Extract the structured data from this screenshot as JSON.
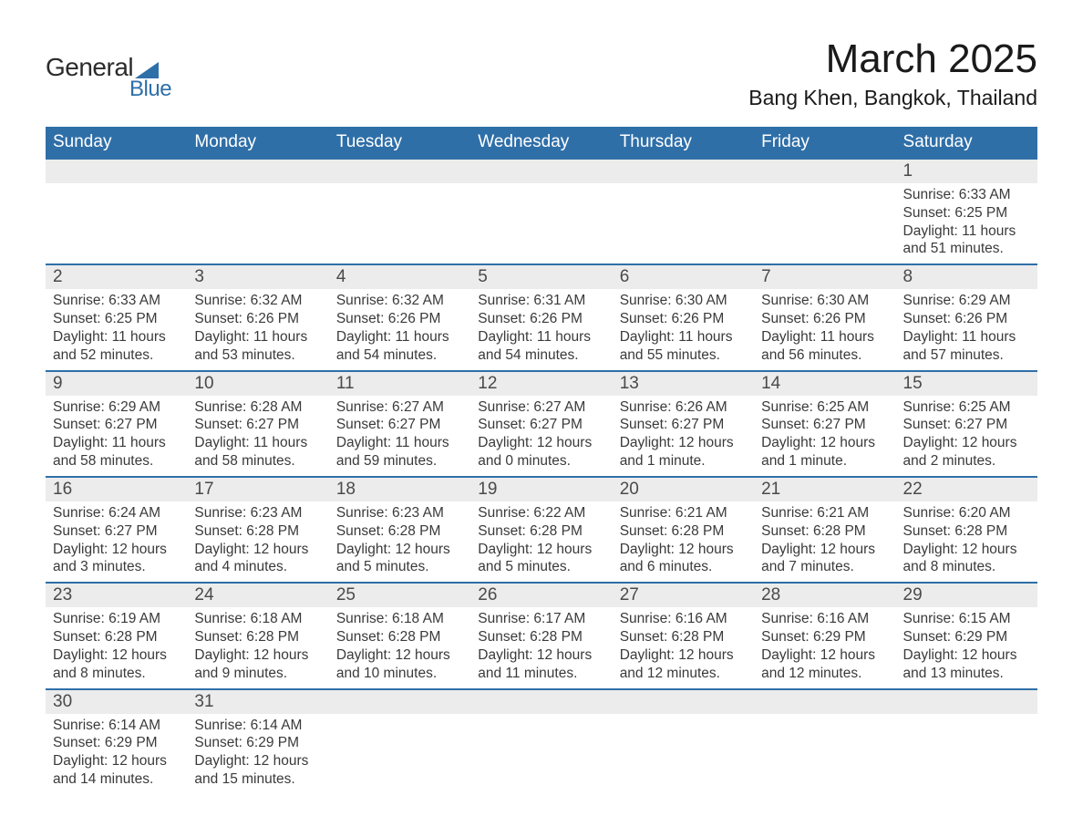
{
  "logo": {
    "text_general": "General",
    "text_blue": "Blue",
    "triangle_color": "#2f6fa8"
  },
  "title": {
    "month": "March 2025",
    "location": "Bang Khen, Bangkok, Thailand"
  },
  "colors": {
    "header_bg": "#2f6fa8",
    "header_text": "#ffffff",
    "row_border": "#2f6fa8",
    "daynum_bg": "#ececec",
    "daynum_text": "#4a4a4a",
    "body_text": "#3a3a3a",
    "page_bg": "#ffffff"
  },
  "fonts": {
    "title_month_size": 44,
    "title_location_size": 23,
    "header_cell_size": 19,
    "daynum_size": 19,
    "body_size": 15.5
  },
  "weekdays": [
    "Sunday",
    "Monday",
    "Tuesday",
    "Wednesday",
    "Thursday",
    "Friday",
    "Saturday"
  ],
  "weeks": [
    [
      null,
      null,
      null,
      null,
      null,
      null,
      {
        "day": "1",
        "sunrise": "Sunrise: 6:33 AM",
        "sunset": "Sunset: 6:25 PM",
        "daylight": "Daylight: 11 hours and 51 minutes."
      }
    ],
    [
      {
        "day": "2",
        "sunrise": "Sunrise: 6:33 AM",
        "sunset": "Sunset: 6:25 PM",
        "daylight": "Daylight: 11 hours and 52 minutes."
      },
      {
        "day": "3",
        "sunrise": "Sunrise: 6:32 AM",
        "sunset": "Sunset: 6:26 PM",
        "daylight": "Daylight: 11 hours and 53 minutes."
      },
      {
        "day": "4",
        "sunrise": "Sunrise: 6:32 AM",
        "sunset": "Sunset: 6:26 PM",
        "daylight": "Daylight: 11 hours and 54 minutes."
      },
      {
        "day": "5",
        "sunrise": "Sunrise: 6:31 AM",
        "sunset": "Sunset: 6:26 PM",
        "daylight": "Daylight: 11 hours and 54 minutes."
      },
      {
        "day": "6",
        "sunrise": "Sunrise: 6:30 AM",
        "sunset": "Sunset: 6:26 PM",
        "daylight": "Daylight: 11 hours and 55 minutes."
      },
      {
        "day": "7",
        "sunrise": "Sunrise: 6:30 AM",
        "sunset": "Sunset: 6:26 PM",
        "daylight": "Daylight: 11 hours and 56 minutes."
      },
      {
        "day": "8",
        "sunrise": "Sunrise: 6:29 AM",
        "sunset": "Sunset: 6:26 PM",
        "daylight": "Daylight: 11 hours and 57 minutes."
      }
    ],
    [
      {
        "day": "9",
        "sunrise": "Sunrise: 6:29 AM",
        "sunset": "Sunset: 6:27 PM",
        "daylight": "Daylight: 11 hours and 58 minutes."
      },
      {
        "day": "10",
        "sunrise": "Sunrise: 6:28 AM",
        "sunset": "Sunset: 6:27 PM",
        "daylight": "Daylight: 11 hours and 58 minutes."
      },
      {
        "day": "11",
        "sunrise": "Sunrise: 6:27 AM",
        "sunset": "Sunset: 6:27 PM",
        "daylight": "Daylight: 11 hours and 59 minutes."
      },
      {
        "day": "12",
        "sunrise": "Sunrise: 6:27 AM",
        "sunset": "Sunset: 6:27 PM",
        "daylight": "Daylight: 12 hours and 0 minutes."
      },
      {
        "day": "13",
        "sunrise": "Sunrise: 6:26 AM",
        "sunset": "Sunset: 6:27 PM",
        "daylight": "Daylight: 12 hours and 1 minute."
      },
      {
        "day": "14",
        "sunrise": "Sunrise: 6:25 AM",
        "sunset": "Sunset: 6:27 PM",
        "daylight": "Daylight: 12 hours and 1 minute."
      },
      {
        "day": "15",
        "sunrise": "Sunrise: 6:25 AM",
        "sunset": "Sunset: 6:27 PM",
        "daylight": "Daylight: 12 hours and 2 minutes."
      }
    ],
    [
      {
        "day": "16",
        "sunrise": "Sunrise: 6:24 AM",
        "sunset": "Sunset: 6:27 PM",
        "daylight": "Daylight: 12 hours and 3 minutes."
      },
      {
        "day": "17",
        "sunrise": "Sunrise: 6:23 AM",
        "sunset": "Sunset: 6:28 PM",
        "daylight": "Daylight: 12 hours and 4 minutes."
      },
      {
        "day": "18",
        "sunrise": "Sunrise: 6:23 AM",
        "sunset": "Sunset: 6:28 PM",
        "daylight": "Daylight: 12 hours and 5 minutes."
      },
      {
        "day": "19",
        "sunrise": "Sunrise: 6:22 AM",
        "sunset": "Sunset: 6:28 PM",
        "daylight": "Daylight: 12 hours and 5 minutes."
      },
      {
        "day": "20",
        "sunrise": "Sunrise: 6:21 AM",
        "sunset": "Sunset: 6:28 PM",
        "daylight": "Daylight: 12 hours and 6 minutes."
      },
      {
        "day": "21",
        "sunrise": "Sunrise: 6:21 AM",
        "sunset": "Sunset: 6:28 PM",
        "daylight": "Daylight: 12 hours and 7 minutes."
      },
      {
        "day": "22",
        "sunrise": "Sunrise: 6:20 AM",
        "sunset": "Sunset: 6:28 PM",
        "daylight": "Daylight: 12 hours and 8 minutes."
      }
    ],
    [
      {
        "day": "23",
        "sunrise": "Sunrise: 6:19 AM",
        "sunset": "Sunset: 6:28 PM",
        "daylight": "Daylight: 12 hours and 8 minutes."
      },
      {
        "day": "24",
        "sunrise": "Sunrise: 6:18 AM",
        "sunset": "Sunset: 6:28 PM",
        "daylight": "Daylight: 12 hours and 9 minutes."
      },
      {
        "day": "25",
        "sunrise": "Sunrise: 6:18 AM",
        "sunset": "Sunset: 6:28 PM",
        "daylight": "Daylight: 12 hours and 10 minutes."
      },
      {
        "day": "26",
        "sunrise": "Sunrise: 6:17 AM",
        "sunset": "Sunset: 6:28 PM",
        "daylight": "Daylight: 12 hours and 11 minutes."
      },
      {
        "day": "27",
        "sunrise": "Sunrise: 6:16 AM",
        "sunset": "Sunset: 6:28 PM",
        "daylight": "Daylight: 12 hours and 12 minutes."
      },
      {
        "day": "28",
        "sunrise": "Sunrise: 6:16 AM",
        "sunset": "Sunset: 6:29 PM",
        "daylight": "Daylight: 12 hours and 12 minutes."
      },
      {
        "day": "29",
        "sunrise": "Sunrise: 6:15 AM",
        "sunset": "Sunset: 6:29 PM",
        "daylight": "Daylight: 12 hours and 13 minutes."
      }
    ],
    [
      {
        "day": "30",
        "sunrise": "Sunrise: 6:14 AM",
        "sunset": "Sunset: 6:29 PM",
        "daylight": "Daylight: 12 hours and 14 minutes."
      },
      {
        "day": "31",
        "sunrise": "Sunrise: 6:14 AM",
        "sunset": "Sunset: 6:29 PM",
        "daylight": "Daylight: 12 hours and 15 minutes."
      },
      null,
      null,
      null,
      null,
      null
    ]
  ]
}
